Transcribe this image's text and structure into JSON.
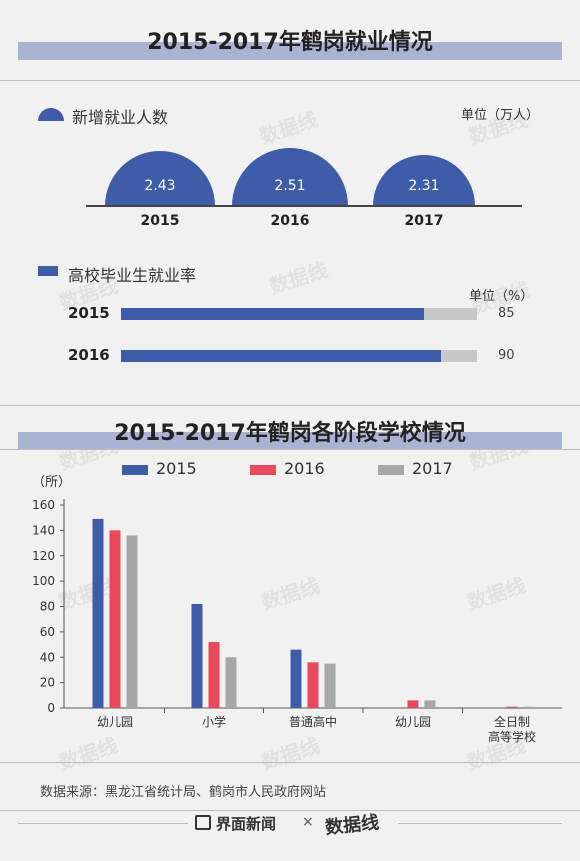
{
  "title1": "2015-2017年鹤岗就业情况",
  "title2": "2015-2017年鹤岗各阶段学校情况",
  "section_new_jobs": {
    "legend": "新增就业人数",
    "unit": "单位（万人）"
  },
  "section_grad_rate": {
    "legend": "高校毕业生就业率",
    "unit": "单位（%）"
  },
  "colors": {
    "blue": "#3f5ca8",
    "red": "#e8495b",
    "gray": "#a7a7a7",
    "band": "#a9b4d2"
  },
  "source": "数据来源：黑龙江省统计局、鹤岗市人民政府网站",
  "footer": {
    "brand1": "界面新闻",
    "times": "×",
    "brand2": "数据线"
  },
  "watermark": "数据线",
  "chart_data": [
    {
      "type": "area",
      "title": "新增就业人数",
      "categories": [
        "2015",
        "2016",
        "2017"
      ],
      "values": [
        2.43,
        2.51,
        2.31
      ],
      "value_labels": [
        "2.43",
        "2.51",
        "2.31"
      ],
      "ylabel": "单位（万人）"
    },
    {
      "type": "bar",
      "orientation": "horizontal",
      "title": "高校毕业生就业率",
      "categories": [
        "2015",
        "2016"
      ],
      "values": [
        85,
        90
      ],
      "value_labels": [
        "85",
        "90"
      ],
      "ylabel": "单位（%）"
    },
    {
      "type": "bar",
      "title": "2015-2017年鹤岗各阶段学校情况",
      "ylabel": "（所）",
      "ylim": [
        0,
        160
      ],
      "yticks": [
        0,
        20,
        40,
        60,
        80,
        100,
        120,
        140,
        160
      ],
      "categories": [
        "幼儿园",
        "小学",
        "普通高中",
        "幼儿园",
        "全日制高等学校"
      ],
      "category_lines": [
        [
          "幼儿园"
        ],
        [
          "小学"
        ],
        [
          "普通高中"
        ],
        [
          "幼儿园"
        ],
        [
          "全日制",
          "高等学校"
        ]
      ],
      "series": [
        {
          "name": "2015",
          "color": "#3f5ca8",
          "values": [
            149,
            82,
            46,
            0,
            0
          ]
        },
        {
          "name": "2016",
          "color": "#e8495b",
          "values": [
            140,
            52,
            36,
            6,
            1
          ]
        },
        {
          "name": "2017",
          "color": "#a7a7a7",
          "values": [
            136,
            40,
            35,
            6,
            1
          ]
        }
      ],
      "legend": "top",
      "grid": false
    }
  ]
}
